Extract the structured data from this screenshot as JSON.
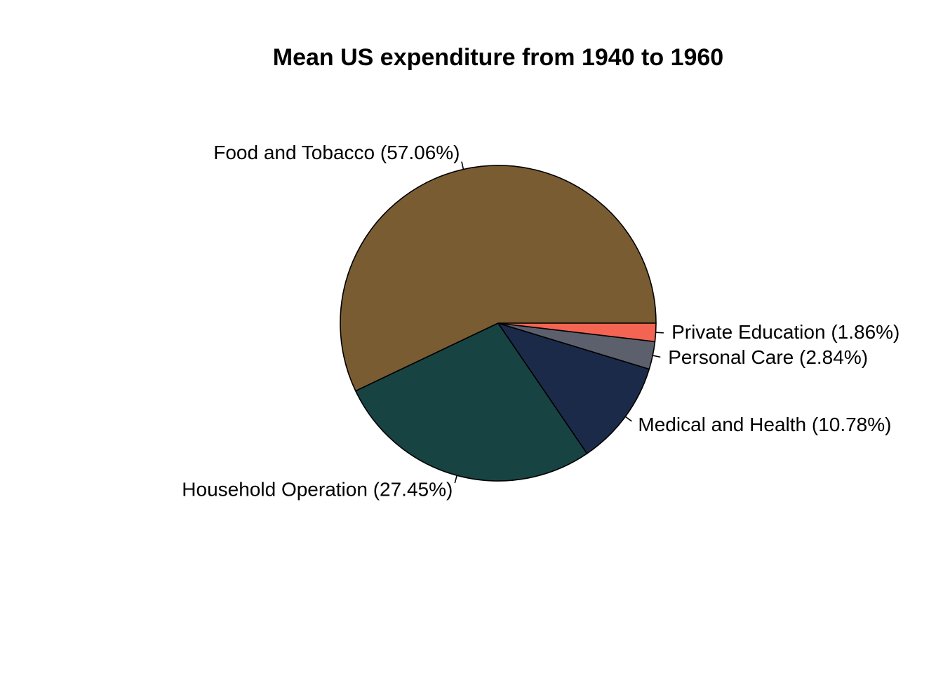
{
  "chart_data": {
    "type": "pie",
    "title": "Mean US expenditure from 1940 to 1960",
    "start_angle_deg": 0,
    "direction": "counterclockwise",
    "slices": [
      {
        "name": "Food and Tobacco",
        "value": 57.06,
        "label": "Food and Tobacco (57.06%)",
        "color": "#7a5c32"
      },
      {
        "name": "Household Operation",
        "value": 27.45,
        "label": "Household Operation (27.45%)",
        "color": "#184343"
      },
      {
        "name": "Medical and Health",
        "value": 10.78,
        "label": "Medical and Health (10.78%)",
        "color": "#1c2a4a"
      },
      {
        "name": "Personal Care",
        "value": 2.84,
        "label": "Personal Care (2.84%)",
        "color": "#5c606c"
      },
      {
        "name": "Private Education",
        "value": 1.86,
        "label": "Private Education (1.86%)",
        "color": "#f46453"
      }
    ]
  }
}
